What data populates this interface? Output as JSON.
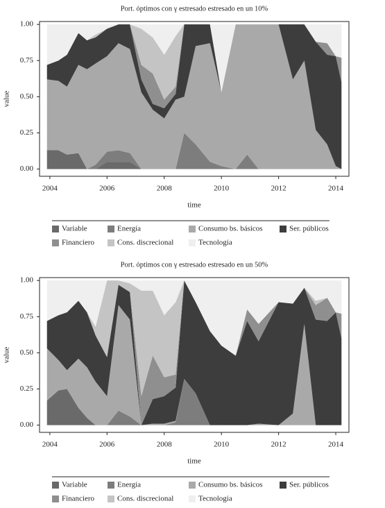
{
  "chart_data": [
    {
      "type": "stacked-area",
      "title": "Port. óptimos con γ estresado estresado en un 10%",
      "x_label": "time",
      "y_label": "value",
      "x": [
        2003.9,
        2004.3,
        2004.6,
        2005.0,
        2005.3,
        2005.6,
        2006.0,
        2006.4,
        2006.8,
        2007.2,
        2007.6,
        2008.0,
        2008.4,
        2008.7,
        2009.1,
        2009.6,
        2010.0,
        2010.5,
        2010.9,
        2011.3,
        2012.0,
        2012.5,
        2012.9,
        2013.3,
        2013.7,
        2014.0,
        2014.2
      ],
      "xlim": [
        2003.64,
        2014.46
      ],
      "xticks": [
        2004,
        2006,
        2008,
        2010,
        2012,
        2014
      ],
      "ylim": [
        -0.05,
        1.02
      ],
      "yticks": [
        {
          "value": 0,
          "label": "0.00"
        },
        {
          "value": 0.25,
          "label": "0.25"
        },
        {
          "value": 0.5,
          "label": "0.50"
        },
        {
          "value": 0.75,
          "label": "0.75"
        },
        {
          "value": 1,
          "label": "1.00"
        }
      ],
      "series": [
        {
          "name": "Variable",
          "color": "#6a6a6a",
          "values": [
            0.13,
            0.13,
            0.1,
            0.11,
            0,
            0,
            0.05,
            0.05,
            0.05,
            0,
            0,
            0,
            0,
            0,
            0,
            0,
            0,
            0,
            0,
            0,
            0,
            0,
            0,
            0,
            0,
            0,
            0
          ]
        },
        {
          "name": "Energía",
          "color": "#7d7d7d",
          "values": [
            0,
            0,
            0,
            0,
            0,
            0.03,
            0.07,
            0.08,
            0.06,
            0,
            0,
            0,
            0,
            0.25,
            0.17,
            0.05,
            0.02,
            0,
            0.1,
            0,
            0,
            0,
            0,
            0,
            0,
            0,
            0
          ]
        },
        {
          "name": "Consumo bs. básicos",
          "color": "#a9a9a9",
          "values": [
            0.49,
            0.48,
            0.47,
            0.61,
            0.69,
            0.7,
            0.66,
            0.74,
            0.72,
            0.53,
            0.41,
            0.35,
            0.48,
            0.25,
            0.68,
            0.82,
            0.51,
            1,
            0.9,
            1,
            1,
            0.62,
            0.75,
            0.27,
            0.17,
            0.02,
            0
          ]
        },
        {
          "name": "Ser. públicos",
          "color": "#3d3d3d",
          "values": [
            0.1,
            0.14,
            0.22,
            0.22,
            0.2,
            0.18,
            0.19,
            0.13,
            0.17,
            0.09,
            0.04,
            0.07,
            0.04,
            0.5,
            0.15,
            0.13,
            0,
            0,
            0,
            0,
            0,
            0.38,
            0.25,
            0.61,
            0.62,
            0.76,
            0.6
          ]
        },
        {
          "name": "Financiero",
          "color": "#8f8f8f",
          "values": [
            0,
            0,
            0,
            0,
            0,
            0,
            0,
            0,
            0,
            0.1,
            0.21,
            0.06,
            0.05,
            0,
            0,
            0,
            0,
            0,
            0,
            0,
            0,
            0,
            0,
            0,
            0.08,
            0,
            0.17
          ]
        },
        {
          "name": "Cons. discrecional",
          "color": "#c4c4c4",
          "values": [
            0,
            0,
            0,
            0,
            0,
            0.02,
            0,
            0,
            0,
            0.25,
            0.25,
            0.31,
            0.35,
            0,
            0,
            0,
            0,
            0,
            0,
            0,
            0,
            0,
            0,
            0,
            0,
            0,
            0
          ]
        },
        {
          "name": "Tecnología",
          "color": "#efefef",
          "values": [
            0.28,
            0.25,
            0.21,
            0.06,
            0.11,
            0.07,
            0.03,
            0,
            0,
            0.03,
            0.09,
            0.21,
            0.08,
            0,
            0,
            0,
            0.47,
            0,
            0,
            0,
            0,
            0,
            0,
            0.12,
            0.13,
            0.22,
            0.23
          ]
        }
      ]
    },
    {
      "type": "stacked-area",
      "title": "Port. óptimos con γ estresado estresado en un 50%",
      "x_label": "time",
      "y_label": "value",
      "x": [
        2003.9,
        2004.3,
        2004.6,
        2005.0,
        2005.3,
        2005.6,
        2006.0,
        2006.4,
        2006.8,
        2007.2,
        2007.6,
        2008.0,
        2008.4,
        2008.7,
        2009.1,
        2009.6,
        2010.0,
        2010.5,
        2010.9,
        2011.3,
        2012.0,
        2012.5,
        2012.9,
        2013.3,
        2013.7,
        2014.0,
        2014.2
      ],
      "xlim": [
        2003.64,
        2014.46
      ],
      "xticks": [
        2004,
        2006,
        2008,
        2010,
        2012,
        2014
      ],
      "ylim": [
        -0.05,
        1.02
      ],
      "yticks": [
        {
          "value": 0,
          "label": "0.00"
        },
        {
          "value": 0.25,
          "label": "0.25"
        },
        {
          "value": 0.5,
          "label": "0.50"
        },
        {
          "value": 0.75,
          "label": "0.75"
        },
        {
          "value": 1,
          "label": "1.00"
        }
      ],
      "series": [
        {
          "name": "Variable",
          "color": "#6a6a6a",
          "values": [
            0.17,
            0.24,
            0.25,
            0.12,
            0.05,
            0,
            0,
            0,
            0,
            0,
            0,
            0,
            0,
            0,
            0,
            0,
            0,
            0,
            0,
            0,
            0,
            0,
            0,
            0,
            0,
            0,
            0
          ]
        },
        {
          "name": "Energía",
          "color": "#7d7d7d",
          "values": [
            0,
            0,
            0,
            0,
            0,
            0,
            0,
            0.1,
            0.06,
            0,
            0,
            0,
            0.02,
            0.32,
            0.22,
            0,
            0,
            0,
            0,
            0,
            0,
            0,
            0,
            0,
            0,
            0,
            0
          ]
        },
        {
          "name": "Consumo bs. básicos",
          "color": "#a9a9a9",
          "values": [
            0.36,
            0.21,
            0.13,
            0.34,
            0.35,
            0.3,
            0.2,
            0.73,
            0.67,
            0,
            0.01,
            0.01,
            0.01,
            0,
            0,
            0,
            0,
            0,
            0,
            0.01,
            0,
            0.08,
            0.7,
            0,
            0,
            0,
            0
          ]
        },
        {
          "name": "Ser. públicos",
          "color": "#3d3d3d",
          "values": [
            0.19,
            0.31,
            0.4,
            0.4,
            0.38,
            0.32,
            0.27,
            0.14,
            0.19,
            0,
            0.17,
            0.19,
            0.23,
            0.68,
            0.63,
            0.65,
            0.55,
            0.48,
            0.72,
            0.57,
            0.85,
            0.76,
            0.25,
            0.73,
            0.72,
            0.78,
            0.6
          ]
        },
        {
          "name": "Financiero",
          "color": "#8f8f8f",
          "values": [
            0,
            0,
            0,
            0,
            0,
            0,
            0,
            0,
            0,
            0.2,
            0.3,
            0.13,
            0.09,
            0,
            0,
            0,
            0,
            0,
            0.08,
            0.12,
            0,
            0,
            0,
            0.1,
            0.16,
            0,
            0.17
          ]
        },
        {
          "name": "Cons. discrecional",
          "color": "#c4c4c4",
          "values": [
            0,
            0,
            0,
            0,
            0,
            0.06,
            0.53,
            0.03,
            0.06,
            0.73,
            0.45,
            0.43,
            0.5,
            0,
            0,
            0,
            0,
            0,
            0,
            0,
            0,
            0,
            0,
            0.03,
            0,
            0,
            0
          ]
        },
        {
          "name": "Tecnología",
          "color": "#efefef",
          "values": [
            0.28,
            0.24,
            0.22,
            0.14,
            0.22,
            0.32,
            0,
            0,
            0.02,
            0.07,
            0.07,
            0.24,
            0.15,
            0,
            0.15,
            0.35,
            0.45,
            0.52,
            0.2,
            0.3,
            0.15,
            0.16,
            0.05,
            0.14,
            0.12,
            0.22,
            0.23
          ]
        }
      ]
    }
  ]
}
